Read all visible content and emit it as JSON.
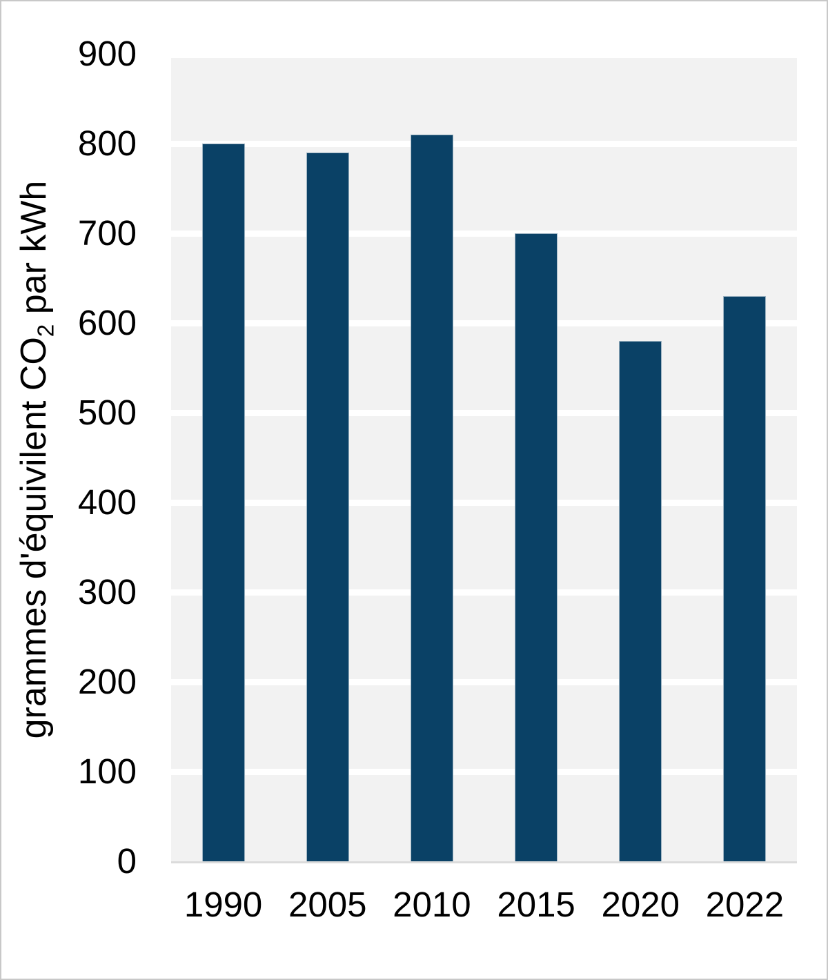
{
  "page": {
    "background": "#ffffff",
    "border_color": "#c8c8c8"
  },
  "chart_data": {
    "type": "bar",
    "title": "",
    "xlabel": "",
    "ylabel": "grammes d'équivilent CO2 par kWh",
    "ylabel_parts": {
      "prefix": "grammes d'équivilent CO",
      "sub": "2",
      "suffix": " par kWh"
    },
    "categories": [
      "1990",
      "2005",
      "2010",
      "2015",
      "2020",
      "2022"
    ],
    "values": [
      800,
      790,
      810,
      700,
      580,
      630
    ],
    "ylim": [
      0,
      900
    ],
    "ytick_step": 100,
    "yticks": [
      0,
      100,
      200,
      300,
      400,
      500,
      600,
      700,
      800,
      900
    ],
    "grid": "horizontal white gridlines on gray panel",
    "legend": "none",
    "colors": {
      "bar": "#0a4166",
      "bar_border": "#9db3c2",
      "plot_bg": "#f2f2f2",
      "gridline": "#ffffff",
      "baseline": "#dbdbdb",
      "text": "#000000"
    }
  }
}
